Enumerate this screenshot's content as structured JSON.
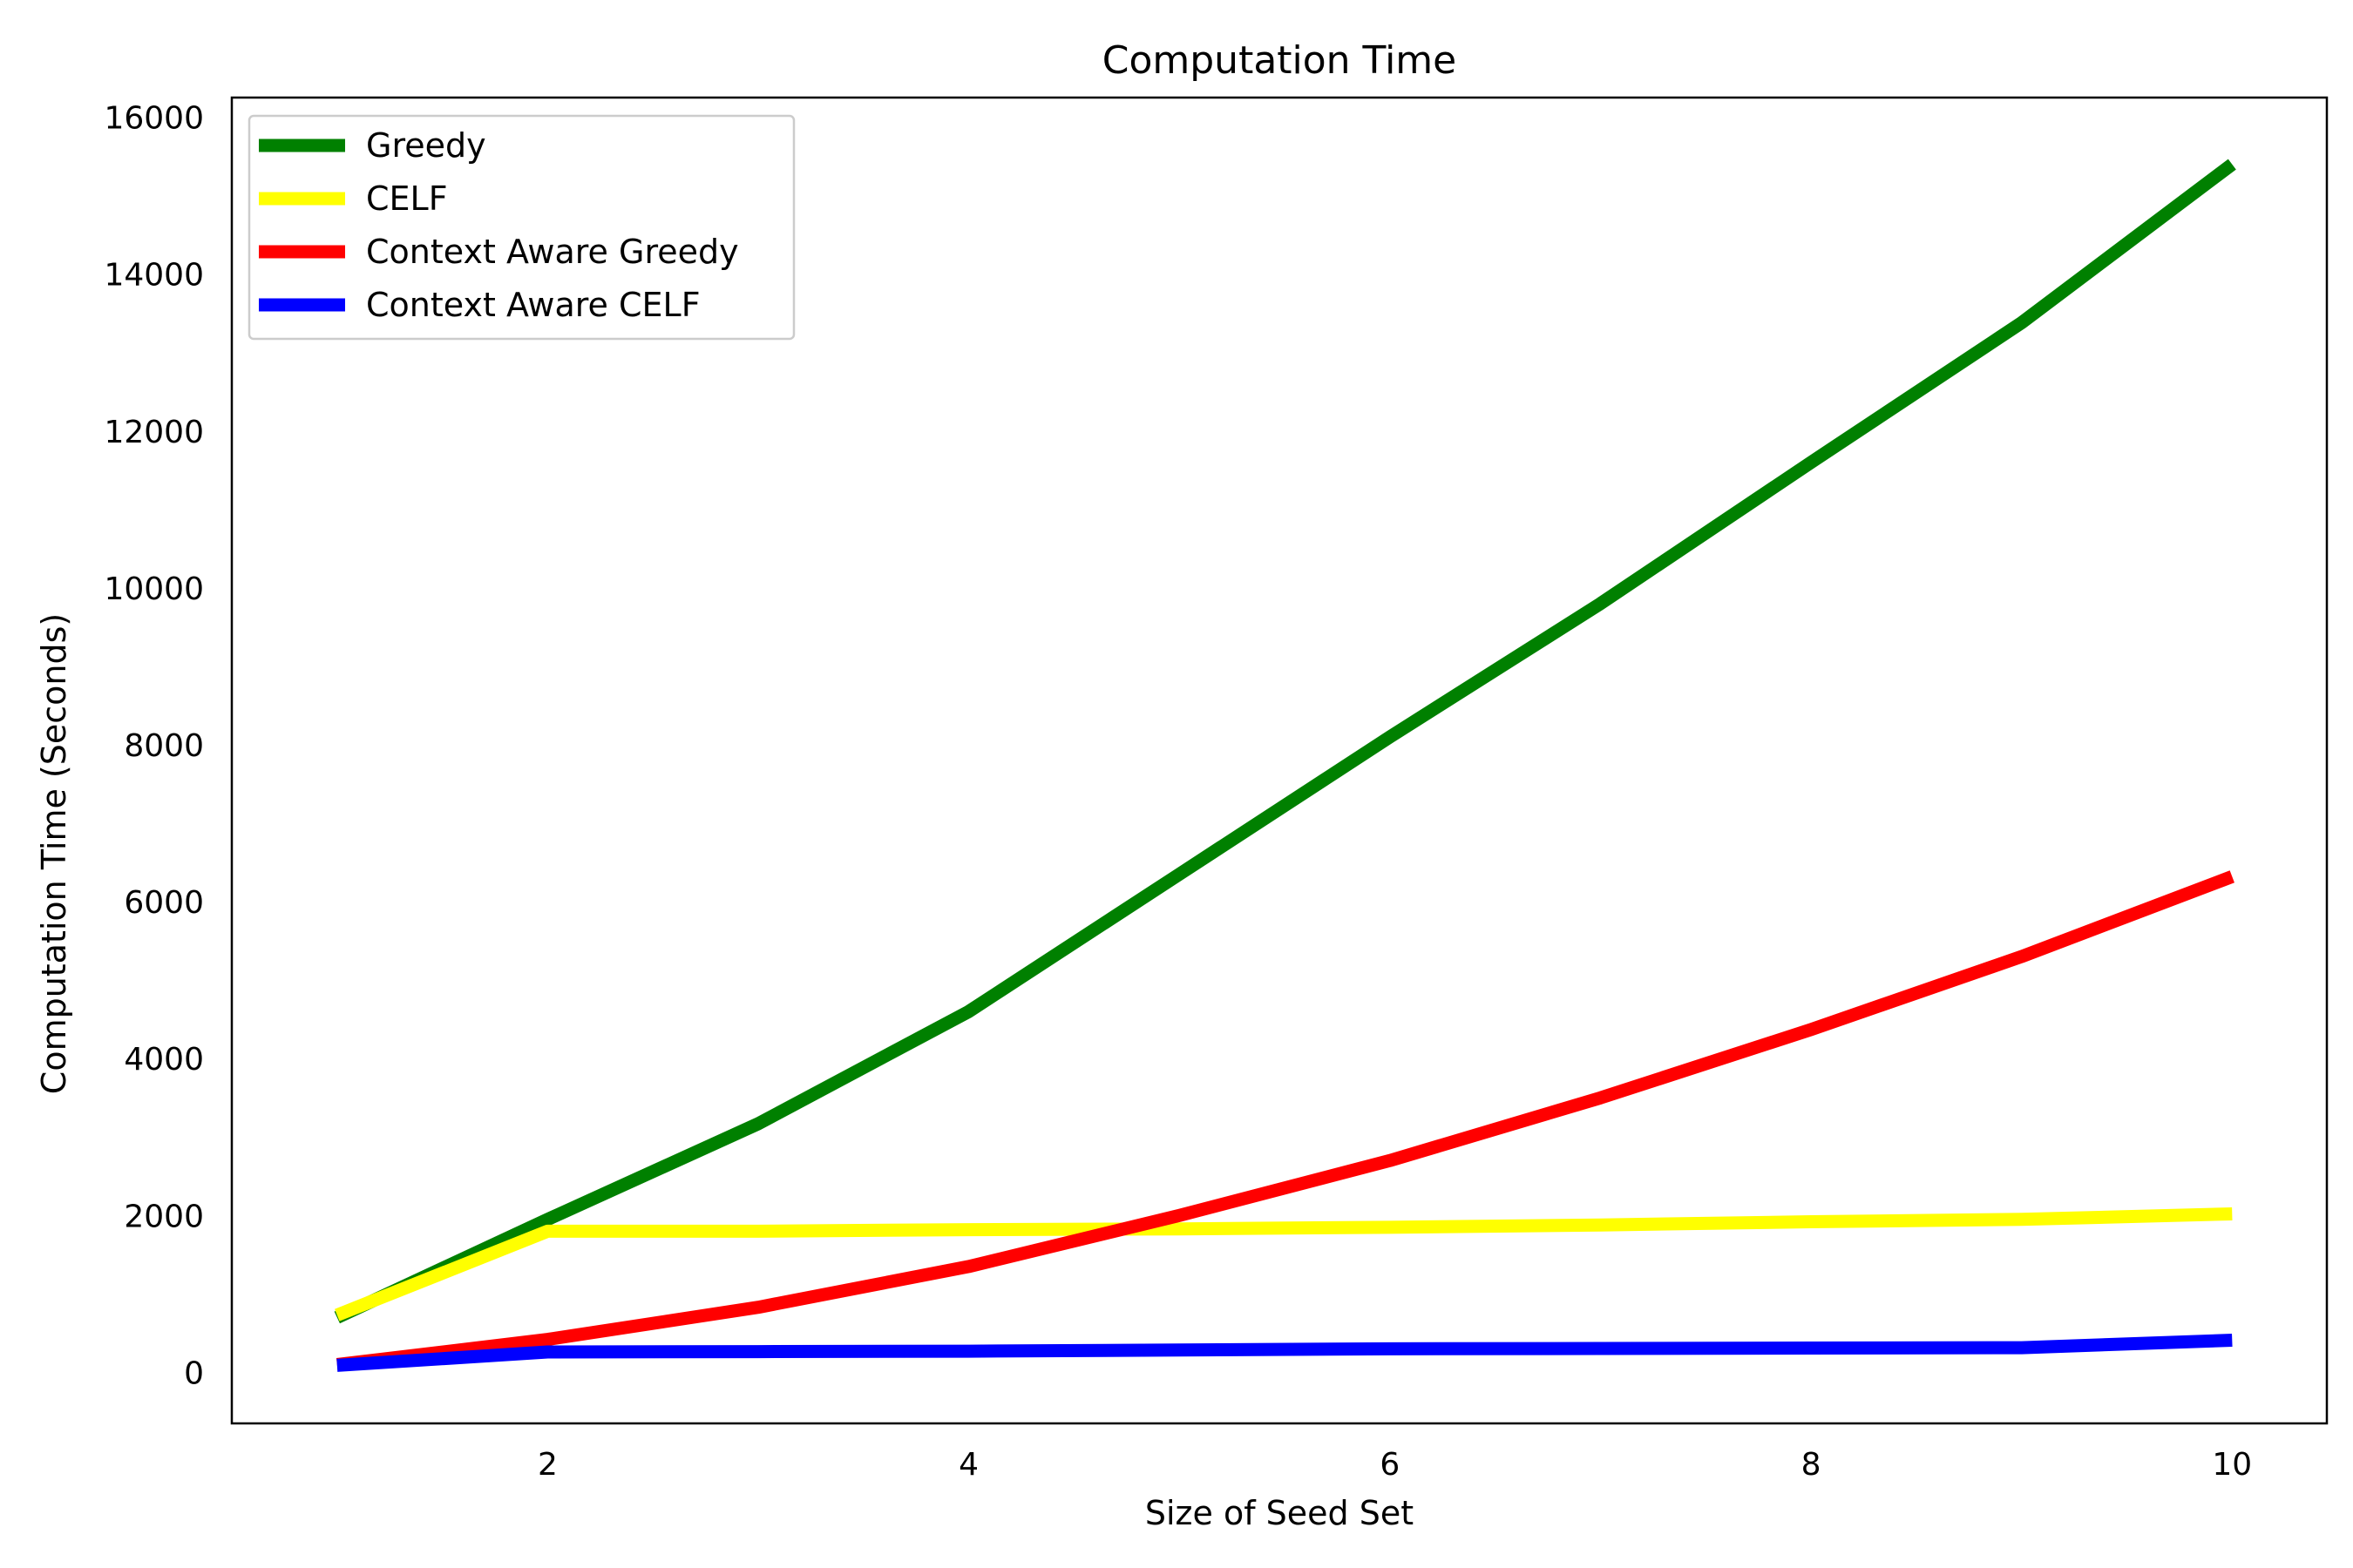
{
  "chart_data": {
    "type": "line",
    "title": "Computation Time",
    "xlabel": "Size of Seed Set",
    "ylabel": "Computation Time (Seconds)",
    "x": [
      1,
      2,
      3,
      4,
      5,
      6,
      7,
      8,
      9,
      10
    ],
    "xlim": [
      0.5,
      10.45
    ],
    "ylim": [
      -650,
      16250
    ],
    "xticks": [
      2,
      4,
      6,
      8,
      10
    ],
    "yticks": [
      0,
      2000,
      4000,
      6000,
      8000,
      10000,
      12000,
      14000,
      16000
    ],
    "grid": false,
    "legend_position": "top-left",
    "series": [
      {
        "name": "Greedy",
        "color": "#008000",
        "values": [
          700,
          1950,
          3170,
          4600,
          6350,
          8100,
          9800,
          11600,
          13380,
          15400
        ]
      },
      {
        "name": "CELF",
        "color": "#ffff00",
        "values": [
          730,
          1800,
          1800,
          1820,
          1830,
          1850,
          1880,
          1920,
          1950,
          2020
        ]
      },
      {
        "name": "Context Aware Greedy",
        "color": "#ff0000",
        "values": [
          100,
          420,
          830,
          1350,
          2000,
          2700,
          3500,
          4370,
          5300,
          6320
        ]
      },
      {
        "name": "Context Aware CELF",
        "color": "#0000ff",
        "values": [
          90,
          260,
          265,
          270,
          285,
          300,
          305,
          310,
          315,
          410
        ]
      }
    ]
  }
}
